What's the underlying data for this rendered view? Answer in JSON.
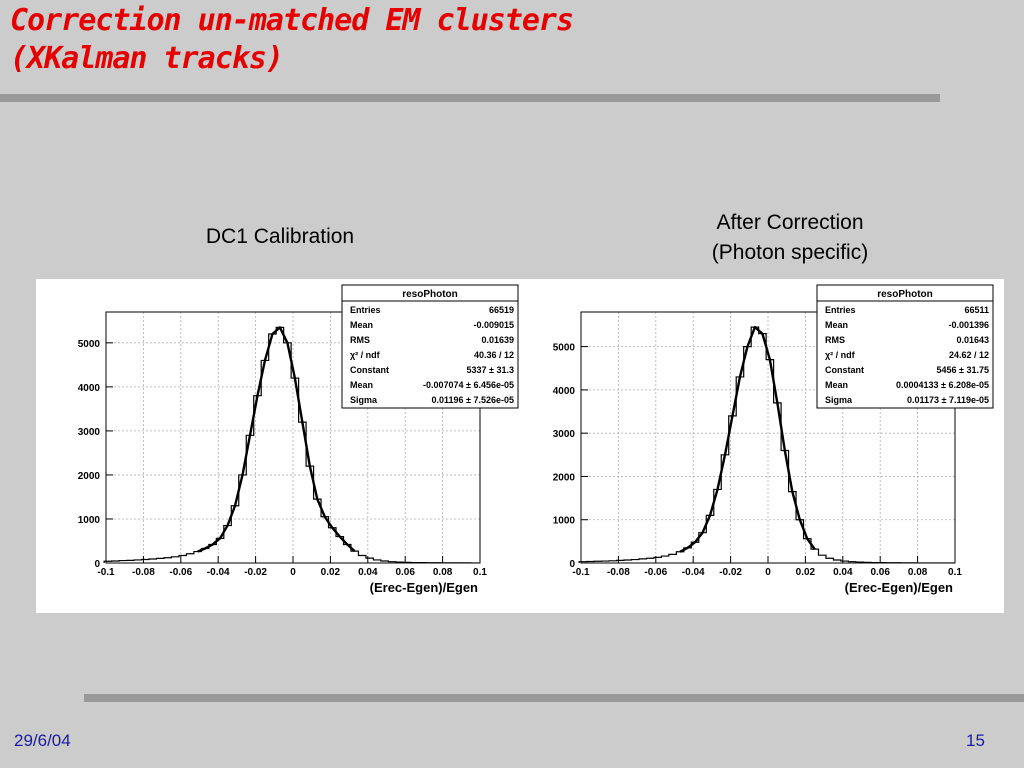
{
  "slide": {
    "title_line1": "Correction un-matched EM clusters",
    "title_line2": "(XKalman tracks)",
    "caption_left": "DC1 Calibration",
    "caption_right_line1": "After Correction",
    "caption_right_line2": "(Photon specific)",
    "footer_date": "29/6/04",
    "footer_page": "15"
  },
  "colors": {
    "title": "#e60000",
    "footer": "#1a1aa8",
    "background": "#cccccc",
    "rule": "#999999"
  },
  "chart_data": [
    {
      "type": "line",
      "subtype": "histogram-with-gaussian-fit",
      "xlabel": "(Erec-Egen)/Egen",
      "ylabel": "",
      "xlim": [
        -0.1,
        0.1
      ],
      "ylim": [
        0,
        5700
      ],
      "x_ticks": [
        "-0.1",
        "-0.08",
        "-0.06",
        "-0.04",
        "-0.02",
        "0",
        "0.02",
        "0.04",
        "0.06",
        "0.08",
        "0.1"
      ],
      "y_ticks": [
        "0",
        "1000",
        "2000",
        "3000",
        "4000",
        "5000"
      ],
      "grid": true,
      "series": [
        {
          "x": [
            -0.099,
            -0.095,
            -0.091,
            -0.087,
            -0.083,
            -0.079,
            -0.075,
            -0.071,
            -0.067,
            -0.063,
            -0.059,
            -0.055,
            -0.051,
            -0.047,
            -0.043,
            -0.039,
            -0.035,
            -0.031,
            -0.027,
            -0.023,
            -0.019,
            -0.015,
            -0.011,
            -0.007,
            -0.003,
            0.001,
            0.005,
            0.009,
            0.013,
            0.017,
            0.021,
            0.025,
            0.029,
            0.033,
            0.037,
            0.041,
            0.045,
            0.049,
            0.053,
            0.057,
            0.061,
            0.065,
            0.069,
            0.073,
            0.077,
            0.081,
            0.085,
            0.089,
            0.093,
            0.097
          ],
          "y": [
            40,
            45,
            55,
            60,
            70,
            80,
            90,
            105,
            120,
            140,
            170,
            210,
            260,
            330,
            420,
            560,
            850,
            1300,
            2000,
            2900,
            3800,
            4600,
            5200,
            5350,
            5000,
            4200,
            3200,
            2200,
            1450,
            1050,
            800,
            600,
            420,
            270,
            170,
            110,
            70,
            45,
            30,
            20,
            15,
            10,
            8,
            6,
            5,
            4,
            3,
            2,
            2,
            1
          ]
        }
      ],
      "stats_box": {
        "title": "resoPhoton",
        "rows": [
          [
            "Entries",
            "66519"
          ],
          [
            "Mean",
            "-0.009015"
          ],
          [
            "RMS",
            "0.01639"
          ],
          [
            "χ² / ndf",
            "40.36 / 12"
          ],
          [
            "Constant",
            "5337 ± 31.3"
          ],
          [
            "Mean",
            "-0.007074 ± 6.456e-05"
          ],
          [
            "Sigma",
            "0.01196 ± 7.526e-05"
          ]
        ]
      }
    },
    {
      "type": "line",
      "subtype": "histogram-with-gaussian-fit",
      "xlabel": "(Erec-Egen)/Egen",
      "ylabel": "",
      "xlim": [
        -0.1,
        0.1
      ],
      "ylim": [
        0,
        5800
      ],
      "x_ticks": [
        "-0.1",
        "-0.08",
        "-0.06",
        "-0.04",
        "-0.02",
        "0",
        "0.02",
        "0.04",
        "0.06",
        "0.08",
        "0.1"
      ],
      "y_ticks": [
        "0",
        "1000",
        "2000",
        "3000",
        "4000",
        "5000"
      ],
      "grid": true,
      "series": [
        {
          "x": [
            -0.099,
            -0.095,
            -0.091,
            -0.087,
            -0.083,
            -0.079,
            -0.075,
            -0.071,
            -0.067,
            -0.063,
            -0.059,
            -0.055,
            -0.051,
            -0.047,
            -0.043,
            -0.039,
            -0.035,
            -0.031,
            -0.027,
            -0.023,
            -0.019,
            -0.015,
            -0.011,
            -0.007,
            -0.003,
            0.001,
            0.005,
            0.009,
            0.013,
            0.017,
            0.021,
            0.025,
            0.029,
            0.033,
            0.037,
            0.041,
            0.045,
            0.049,
            0.053,
            0.057,
            0.061,
            0.065,
            0.069,
            0.073,
            0.077,
            0.081,
            0.085,
            0.089,
            0.093,
            0.097
          ],
          "y": [
            30,
            35,
            40,
            45,
            50,
            60,
            70,
            80,
            95,
            110,
            130,
            160,
            200,
            260,
            350,
            480,
            700,
            1100,
            1700,
            2500,
            3400,
            4300,
            5000,
            5450,
            5300,
            4700,
            3700,
            2600,
            1650,
            1000,
            560,
            320,
            180,
            110,
            70,
            45,
            30,
            20,
            15,
            10,
            8,
            6,
            5,
            4,
            3,
            2,
            2,
            1,
            1,
            1
          ]
        }
      ],
      "stats_box": {
        "title": "resoPhoton",
        "rows": [
          [
            "Entries",
            "66511"
          ],
          [
            "Mean",
            "-0.001396"
          ],
          [
            "RMS",
            "0.01643"
          ],
          [
            "χ² / ndf",
            "24.62 / 12"
          ],
          [
            "Constant",
            "5456 ± 31.75"
          ],
          [
            "Mean",
            "0.0004133 ± 6.208e-05"
          ],
          [
            "Sigma",
            "0.01173 ± 7.119e-05"
          ]
        ]
      }
    }
  ]
}
